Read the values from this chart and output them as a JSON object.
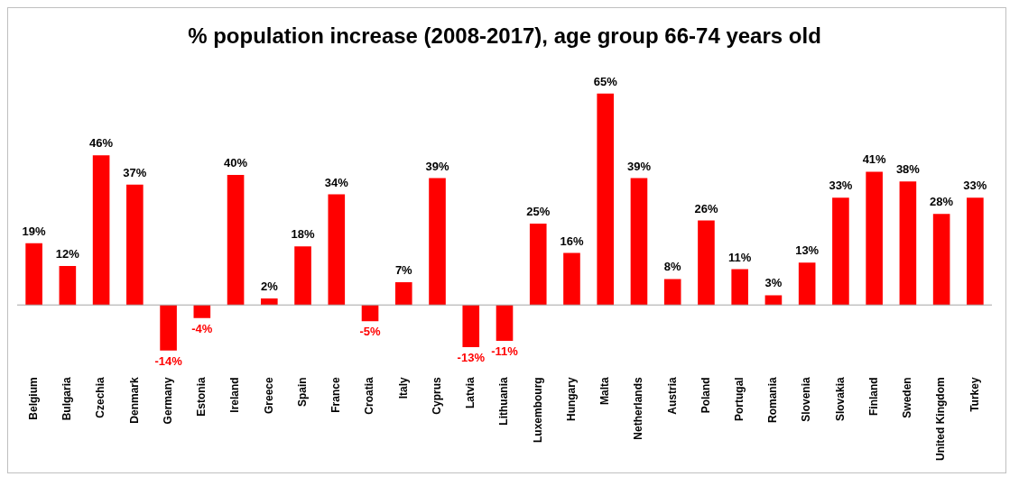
{
  "chart_data": {
    "type": "bar",
    "title": "% population increase (2008-2017), age group 66-74 years old",
    "categories": [
      "Belgium",
      "Bulgaria",
      "Czechia",
      "Denmark",
      "Germany",
      "Estonia",
      "Ireland",
      "Greece",
      "Spain",
      "France",
      "Croatia",
      "Italy",
      "Cyprus",
      "Latvia",
      "Lithuania",
      "Luxembourg",
      "Hungary",
      "Malta",
      "Netherlands",
      "Austria",
      "Poland",
      "Portugal",
      "Romania",
      "Slovenia",
      "Slovakia",
      "Finland",
      "Sweden",
      "United Kingdom",
      "Turkey"
    ],
    "values": [
      19,
      12,
      46,
      37,
      -14,
      -4,
      40,
      2,
      18,
      34,
      -5,
      7,
      39,
      -13,
      -11,
      25,
      16,
      65,
      39,
      8,
      26,
      11,
      3,
      13,
      33,
      41,
      38,
      28,
      33
    ],
    "value_labels": [
      "19%",
      "12%",
      "46%",
      "37%",
      "-14%",
      "-4%",
      "40%",
      "2%",
      "18%",
      "34%",
      "-5%",
      "7%",
      "39%",
      "-13%",
      "-11%",
      "25%",
      "16%",
      "65%",
      "39%",
      "8%",
      "26%",
      "11%",
      "3%",
      "13%",
      "33%",
      "41%",
      "38%",
      "28%",
      "33%"
    ],
    "color": "#ff0000",
    "grid": false,
    "legend": false,
    "tick_labels": "x"
  }
}
